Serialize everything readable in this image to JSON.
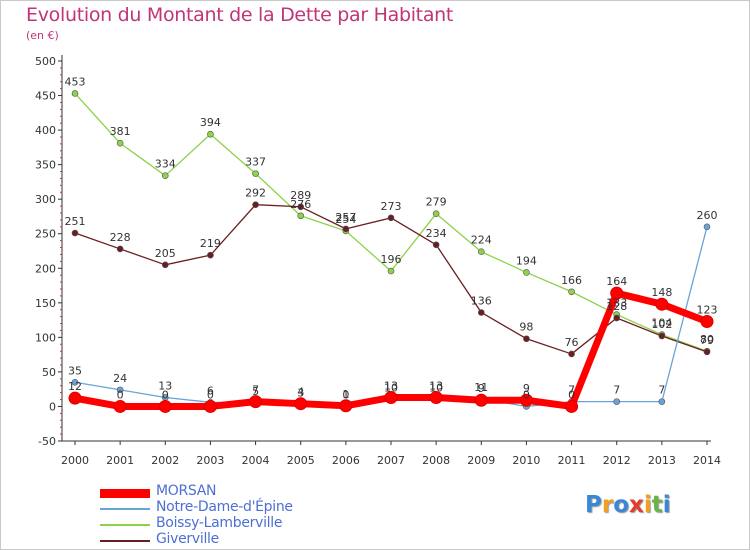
{
  "title": "Evolution du Montant de la Dette par Habitant",
  "subtitle": "(en €)",
  "logo": {
    "text": "Proxiti",
    "colors": [
      "#3a87d6",
      "#f0a020",
      "#3a87d6",
      "#e23c2c",
      "#f0a020",
      "#6ab34a",
      "#3a87d6"
    ]
  },
  "chart_data": {
    "type": "line",
    "title": "Evolution du Montant de la Dette par Habitant",
    "ylabel": "(en €)",
    "xlabel": "",
    "x": [
      "2000",
      "2001",
      "2002",
      "2003",
      "2004",
      "2005",
      "2006",
      "2007",
      "2008",
      "2009",
      "2010",
      "2011",
      "2012",
      "2013",
      "2014"
    ],
    "ylim": [
      -50,
      500
    ],
    "yticks": [
      "-50",
      "0",
      "50",
      "100",
      "150",
      "200",
      "250",
      "300",
      "350",
      "400",
      "450",
      "500"
    ],
    "grid": false,
    "legend_position": "bottom-left",
    "series": [
      {
        "name": "MORSAN",
        "color": "#ff0000",
        "values": [
          12,
          0,
          0,
          0,
          7,
          4,
          1,
          13,
          13,
          9,
          9,
          0,
          164,
          148,
          123
        ]
      },
      {
        "name": "Notre-Dame-d'Épine",
        "color": "#6aa3d8",
        "values": [
          35,
          24,
          13,
          6,
          5,
          3,
          0,
          10,
          10,
          11,
          0,
          7,
          7,
          7,
          260
        ]
      },
      {
        "name": "Boissy-Lamberville",
        "color": "#8ed14a",
        "values": [
          453,
          381,
          334,
          394,
          337,
          276,
          254,
          196,
          279,
          224,
          194,
          166,
          133,
          104,
          80
        ]
      },
      {
        "name": "Giverville",
        "color": "#6b1e22",
        "values": [
          251,
          228,
          205,
          219,
          292,
          289,
          257,
          273,
          234,
          136,
          98,
          76,
          128,
          102,
          79
        ]
      }
    ]
  }
}
